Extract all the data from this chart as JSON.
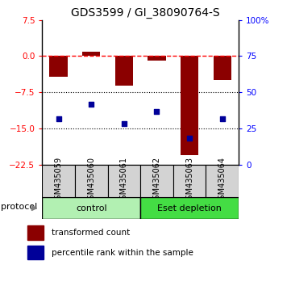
{
  "title": "GDS3599 / GI_38090764-S",
  "categories": [
    "GSM435059",
    "GSM435060",
    "GSM435061",
    "GSM435062",
    "GSM435063",
    "GSM435064"
  ],
  "red_bars": [
    -4.2,
    1.0,
    -6.2,
    -1.0,
    -20.5,
    -5.0
  ],
  "blue_dots": [
    -13.0,
    -10.0,
    -14.0,
    -11.5,
    -17.0,
    -13.0
  ],
  "ylim": [
    -22.5,
    7.5
  ],
  "yticks_left": [
    7.5,
    0,
    -7.5,
    -15,
    -22.5
  ],
  "yticks_right_vals": [
    100,
    75,
    50,
    25,
    0
  ],
  "yticks_right_pos": [
    7.5,
    0,
    -7.5,
    -15,
    -22.5
  ],
  "hline_y": 0,
  "dotted_lines": [
    -7.5,
    -15
  ],
  "control_color": "#b2f0b2",
  "eset_color": "#44dd44",
  "sample_box_color": "#d3d3d3",
  "bar_color": "#8B0000",
  "dot_color": "#000099",
  "legend_red_label": "transformed count",
  "legend_blue_label": "percentile rank within the sample",
  "protocol_label": "protocol",
  "control_label": "control",
  "eset_label": "Eset depletion",
  "bar_width": 0.55,
  "title_fontsize": 10,
  "tick_fontsize": 7.5,
  "label_fontsize": 8,
  "legend_fontsize": 7.5
}
